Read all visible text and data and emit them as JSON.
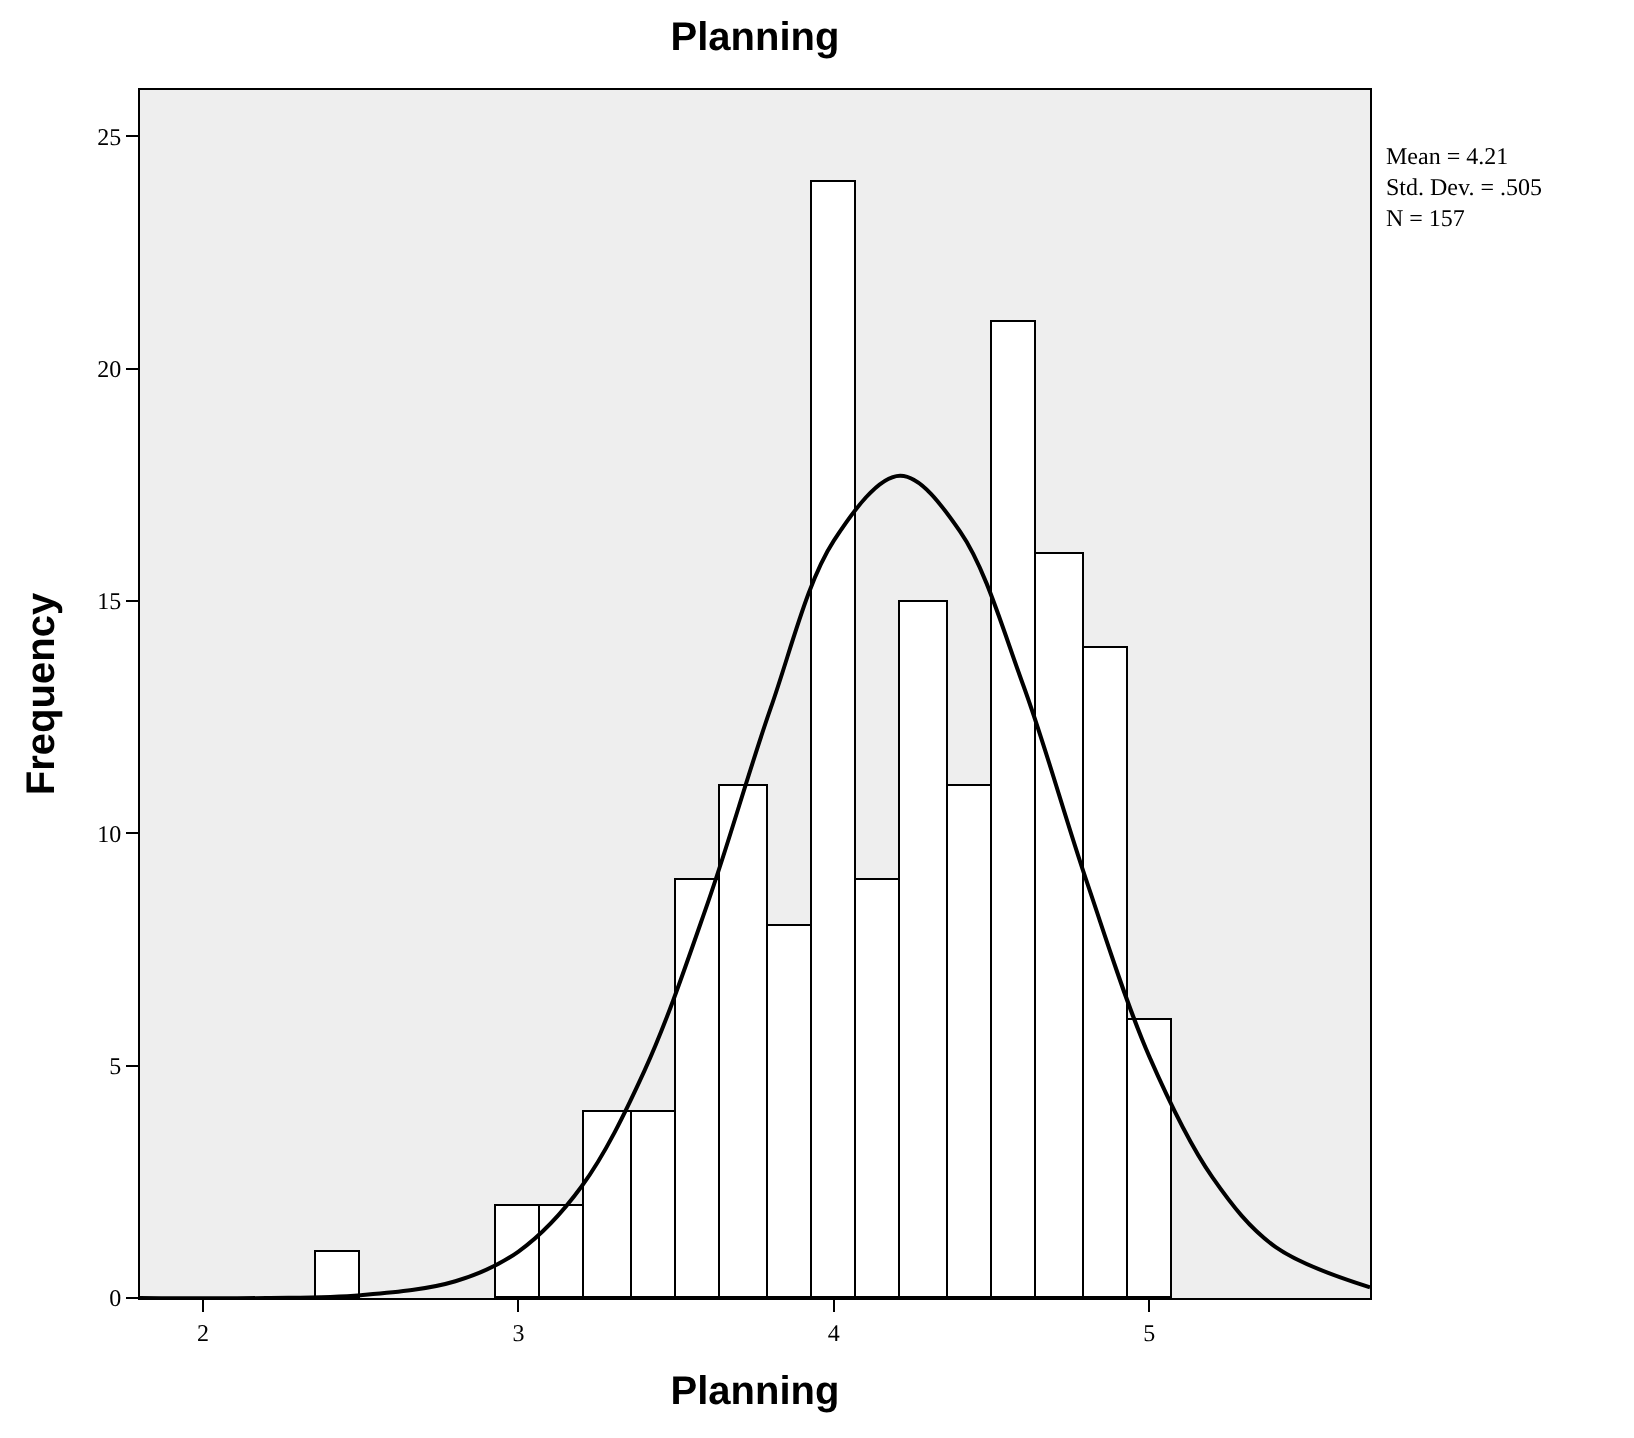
{
  "chart_data": {
    "type": "histogram",
    "title": "Planning",
    "xlabel": "Planning",
    "ylabel": "Frequency",
    "bins": [
      2.36,
      2.5,
      2.93,
      3.07,
      3.21,
      3.36,
      3.5,
      3.64,
      3.79,
      3.93,
      4.07,
      4.21,
      4.36,
      4.5,
      4.64,
      4.79,
      4.93,
      5.07
    ],
    "values": [
      1,
      0,
      2,
      2,
      4,
      4,
      9,
      11,
      8,
      24,
      9,
      15,
      11,
      21,
      16,
      14,
      6
    ],
    "color": "#ffffff",
    "series": [
      {
        "type": "line",
        "color": "#000000",
        "x": [
          1.8,
          2.2,
          2.5,
          2.8,
          3.0,
          3.2,
          3.4,
          3.6,
          3.8,
          4.0,
          4.21,
          4.4,
          4.6,
          4.8,
          5.0,
          5.2,
          5.4,
          5.7
        ],
        "values": [
          0,
          0,
          0.06,
          0.36,
          1.0,
          2.4,
          4.9,
          8.5,
          12.7,
          16.3,
          17.7,
          16.5,
          13.2,
          9.0,
          5.2,
          2.6,
          1.1,
          0.23
        ]
      }
    ],
    "xlim": [
      1.8,
      5.7
    ],
    "xticks": [
      2,
      3,
      4,
      5
    ],
    "ylim": [
      0,
      26
    ],
    "yticks": [
      0,
      5,
      10,
      15,
      20,
      25
    ],
    "annotations": [
      "Mean = 4.21",
      "Std. Dev. = .505",
      "N = 157"
    ]
  }
}
